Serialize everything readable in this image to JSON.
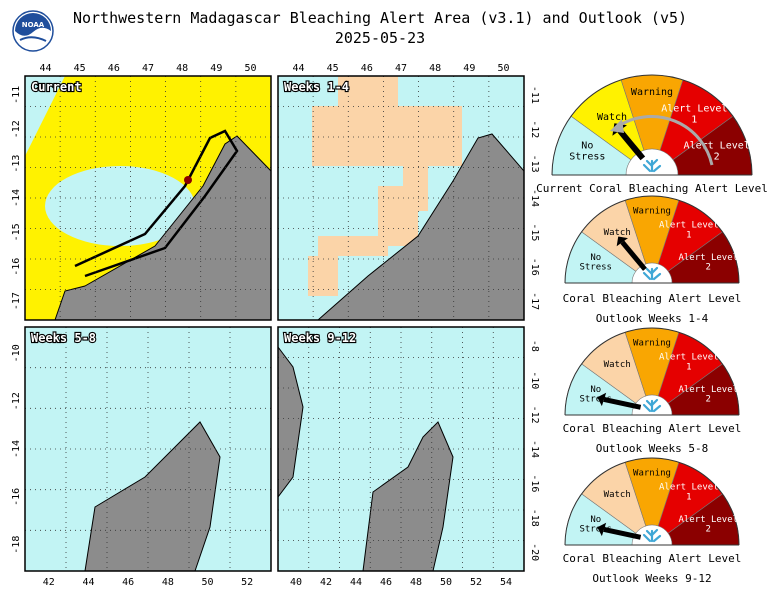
{
  "header": {
    "title": "Northwestern Madagascar Bleaching Alert Area (v3.1) and Outlook (v5)",
    "date": "2025-05-23",
    "logo_text": "NOAA"
  },
  "colors": {
    "ocean": "#c2f4f4",
    "land": "#8c8c8c",
    "no_stress": "#c2f4f4",
    "watch": "#fff200",
    "watch_outlook": "#fbd4a8",
    "warning": "#f9a602",
    "alert1": "#e50000",
    "alert2": "#8b0000",
    "outlook_fill": "#fbd4a8",
    "current_fill": "#fff200",
    "border_line": "#000000",
    "coral_icon": "#3fa7d6"
  },
  "panels": [
    {
      "label": "Current",
      "lon_ticks": [
        "44",
        "45",
        "46",
        "47",
        "48",
        "49",
        "50"
      ],
      "lat_ticks": [
        "-11",
        "-12",
        "-13",
        "-14",
        "-15",
        "-16",
        "-17"
      ],
      "lat_axis": "left"
    },
    {
      "label": "Weeks 1-4",
      "lon_ticks": [
        "44",
        "45",
        "46",
        "47",
        "48",
        "49",
        "50"
      ],
      "lat_ticks": [
        "-11",
        "-12",
        "-13",
        "-14",
        "-15",
        "-16",
        "-17"
      ],
      "lat_axis": "right"
    },
    {
      "label": "Weeks 5-8",
      "lon_ticks": [
        "42",
        "44",
        "46",
        "48",
        "50",
        "52"
      ],
      "lat_ticks": [
        "-10",
        "-12",
        "-14",
        "-16",
        "-18"
      ],
      "lat_axis": "left"
    },
    {
      "label": "Weeks 9-12",
      "lon_ticks": [
        "40",
        "42",
        "44",
        "46",
        "48",
        "50",
        "52",
        "54"
      ],
      "lat_ticks": [
        "-8",
        "-10",
        "-12",
        "-14",
        "-16",
        "-18",
        "-20"
      ],
      "lat_axis": "right"
    }
  ],
  "gauge_labels": {
    "no_stress": "No Stress",
    "watch": "Watch",
    "warning": "Warning",
    "alert1": "Alert Level 1",
    "alert2": "Alert Level 2"
  },
  "gauges": [
    {
      "caption": "Current Coral Bleaching Alert Level",
      "subcaption": "",
      "level": "watch",
      "current": true
    },
    {
      "caption": "Coral Bleaching Alert Level",
      "subcaption": "Outlook Weeks 1-4",
      "level": "watch",
      "current": false
    },
    {
      "caption": "Coral Bleaching Alert Level",
      "subcaption": "Outlook Weeks 5-8",
      "level": "no_stress",
      "current": false
    },
    {
      "caption": "Coral Bleaching Alert Level",
      "subcaption": "Outlook Weeks 9-12",
      "level": "no_stress",
      "current": false
    }
  ]
}
